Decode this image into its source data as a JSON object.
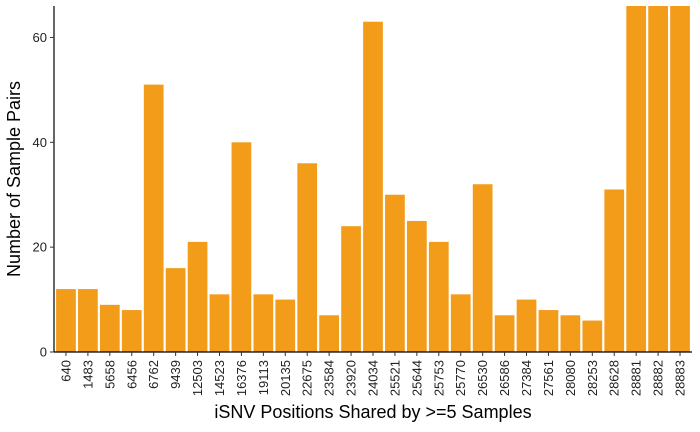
{
  "chart_data": {
    "type": "bar",
    "title": "",
    "xlabel": "iSNV Positions Shared by >=5 Samples",
    "ylabel": "Number of Sample Pairs",
    "ylim": [
      0,
      66
    ],
    "yticks": [
      0,
      20,
      40,
      60
    ],
    "grid": false,
    "bar_color": "#F39C1A",
    "categories": [
      "640",
      "1483",
      "5658",
      "6456",
      "6762",
      "9439",
      "12503",
      "14523",
      "16376",
      "19113",
      "20135",
      "22675",
      "23584",
      "23920",
      "24034",
      "25521",
      "25644",
      "25753",
      "25770",
      "26530",
      "26586",
      "27384",
      "27561",
      "28080",
      "28253",
      "28628",
      "28881",
      "28882",
      "28883"
    ],
    "values": [
      12,
      12,
      9,
      8,
      51,
      16,
      21,
      11,
      40,
      11,
      10,
      36,
      7,
      24,
      63,
      30,
      25,
      21,
      11,
      32,
      7,
      10,
      8,
      7,
      6,
      31,
      66,
      66,
      66
    ]
  }
}
